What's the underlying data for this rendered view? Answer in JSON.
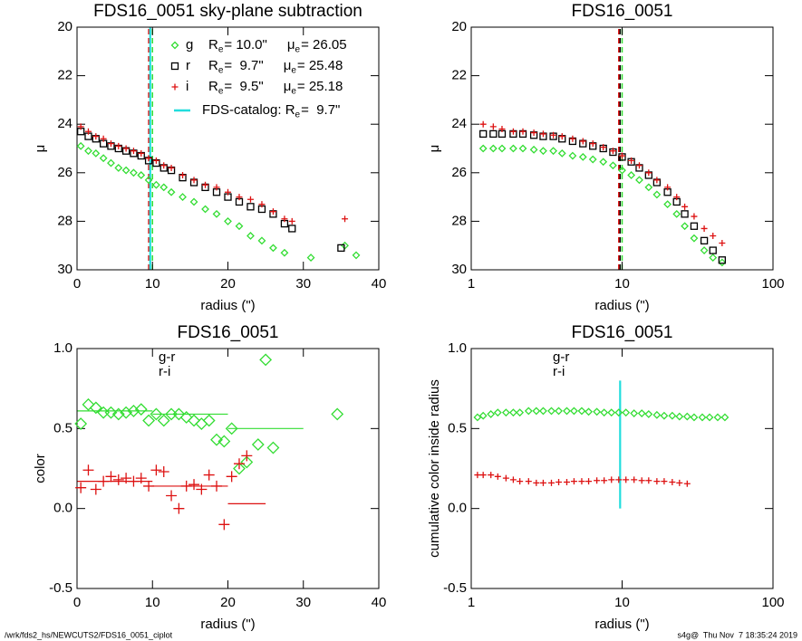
{
  "chart_data": [
    {
      "type": "scatter",
      "title": "FDS16_0051 sky-plane subtraction",
      "xlabel": "radius (\")",
      "ylabel": "μ",
      "xlim": [
        0,
        40
      ],
      "ylim": [
        30,
        20
      ],
      "xticks": [
        0,
        10,
        20,
        30,
        40
      ],
      "yticks": [
        20,
        22,
        24,
        26,
        28,
        30
      ],
      "legend_style": "symbols",
      "series": [
        {
          "name": "g",
          "color": "#33dd33",
          "marker": "diamond",
          "legend_parts": [
            [
              "R",
              "e"
            ],
            [
              "= 10.0\""
            ],
            [
              "μ",
              "e"
            ],
            [
              "= 26.05"
            ]
          ],
          "x": [
            0.5,
            1.5,
            2.5,
            3.5,
            4.5,
            5.5,
            6.5,
            7.5,
            8.5,
            9.5,
            10.5,
            11.5,
            12.5,
            14,
            15.5,
            17,
            18.5,
            20,
            21.5,
            23,
            24.5,
            26,
            27.5,
            31,
            35.5,
            37
          ],
          "values": [
            24.9,
            25.1,
            25.2,
            25.4,
            25.6,
            25.8,
            25.9,
            26.0,
            26.1,
            26.3,
            26.5,
            26.6,
            26.8,
            27.0,
            27.2,
            27.5,
            27.7,
            28.0,
            28.2,
            28.6,
            28.8,
            29.1,
            29.3,
            29.5,
            29.0,
            29.4
          ]
        },
        {
          "name": "r",
          "color": "#000000",
          "marker": "square",
          "legend_parts": [
            [
              "R",
              "e"
            ],
            [
              "=  9.7\""
            ],
            [
              "μ",
              "e"
            ],
            [
              "= 25.48"
            ]
          ],
          "x": [
            0.5,
            1.5,
            2.5,
            3.5,
            4.5,
            5.5,
            6.5,
            7.5,
            8.5,
            9.5,
            10.5,
            11.5,
            12.5,
            14,
            15.5,
            17,
            18.5,
            20,
            21.5,
            23,
            24.5,
            26,
            27.5,
            28.5,
            35
          ],
          "values": [
            24.3,
            24.5,
            24.6,
            24.8,
            24.9,
            25.0,
            25.1,
            25.2,
            25.3,
            25.5,
            25.6,
            25.8,
            25.9,
            26.2,
            26.4,
            26.6,
            26.8,
            27.0,
            27.2,
            27.4,
            27.5,
            27.7,
            28.1,
            28.3,
            29.1
          ]
        },
        {
          "name": "i",
          "color": "#dd1111",
          "marker": "plus",
          "legend_parts": [
            [
              "R",
              "e"
            ],
            [
              "=  9.5\""
            ],
            [
              "μ",
              "e"
            ],
            [
              "= 25.18"
            ]
          ],
          "x": [
            0.5,
            1.5,
            2.5,
            3.5,
            4.5,
            5.5,
            6.5,
            7.5,
            8.5,
            9.5,
            10.5,
            11.5,
            12.5,
            14,
            15.5,
            17,
            18.5,
            20,
            21.5,
            23,
            24.5,
            26,
            27.5,
            28.5,
            35.5
          ],
          "values": [
            24.1,
            24.3,
            24.5,
            24.6,
            24.8,
            24.9,
            25.0,
            25.1,
            25.2,
            25.4,
            25.5,
            25.7,
            25.8,
            26.1,
            26.3,
            26.5,
            26.6,
            26.8,
            27.0,
            27.1,
            27.3,
            27.6,
            27.9,
            28.0,
            27.9
          ]
        }
      ],
      "vlines": [
        {
          "x": 10.0,
          "color": "#33dd33",
          "dashed": true
        },
        {
          "x": 9.7,
          "color": "#000000",
          "dashed": true
        },
        {
          "x": 9.5,
          "color": "#dd1111",
          "dashed": true
        },
        {
          "x": 9.7,
          "color": "#22dddd",
          "dashed": false,
          "label_parts": [
            [
              "FDS-catalog: R",
              "e"
            ],
            [
              "=  9.7\""
            ]
          ]
        }
      ]
    },
    {
      "type": "scatter",
      "title": "FDS16_0051",
      "xlabel": "radius (\")",
      "ylabel": "μ",
      "xlog": true,
      "xlim": [
        1,
        100
      ],
      "ylim": [
        30,
        20
      ],
      "xticks": [
        1,
        10,
        100
      ],
      "yticks": [
        20,
        22,
        24,
        26,
        28,
        30
      ],
      "series": [
        {
          "color": "#33dd33",
          "marker": "diamond",
          "x": [
            1.2,
            1.4,
            1.6,
            1.9,
            2.2,
            2.6,
            3,
            3.5,
            4,
            4.7,
            5.5,
            6.4,
            7.5,
            8.7,
            10,
            11.5,
            13,
            15,
            17,
            20,
            23,
            26,
            30,
            35,
            40,
            46
          ],
          "values": [
            25.0,
            25.0,
            25.0,
            25.0,
            25.0,
            25.05,
            25.1,
            25.1,
            25.2,
            25.3,
            25.35,
            25.45,
            25.55,
            25.7,
            25.9,
            26.1,
            26.3,
            26.6,
            26.9,
            27.3,
            27.7,
            28.2,
            28.7,
            29.2,
            29.5,
            29.7
          ]
        },
        {
          "color": "#000000",
          "marker": "square",
          "x": [
            1.2,
            1.4,
            1.6,
            1.9,
            2.2,
            2.6,
            3,
            3.5,
            4,
            4.7,
            5.5,
            6.4,
            7.5,
            8.7,
            10,
            11.5,
            13,
            15,
            17,
            20,
            23,
            26,
            30,
            35,
            40,
            46
          ],
          "values": [
            24.4,
            24.4,
            24.4,
            24.4,
            24.4,
            24.45,
            24.5,
            24.5,
            24.6,
            24.7,
            24.8,
            24.9,
            25.0,
            25.15,
            25.35,
            25.55,
            25.8,
            26.1,
            26.4,
            26.8,
            27.2,
            27.7,
            28.2,
            28.8,
            29.2,
            29.6
          ]
        },
        {
          "color": "#dd1111",
          "marker": "plus",
          "x": [
            1.2,
            1.4,
            1.6,
            1.9,
            2.2,
            2.6,
            3,
            3.5,
            4,
            4.7,
            5.5,
            6.4,
            7.5,
            8.7,
            10,
            11.5,
            13,
            15,
            17,
            20,
            23,
            26,
            30,
            35,
            40,
            46
          ],
          "values": [
            24.0,
            24.1,
            24.2,
            24.3,
            24.3,
            24.35,
            24.4,
            24.45,
            24.5,
            24.6,
            24.7,
            24.8,
            24.95,
            25.1,
            25.3,
            25.5,
            25.7,
            26.0,
            26.3,
            26.6,
            27.0,
            27.4,
            27.8,
            28.3,
            28.6,
            28.9
          ]
        }
      ],
      "vlines": [
        {
          "x": 10.0,
          "color": "#33dd33",
          "dashed": true
        },
        {
          "x": 9.7,
          "color": "#000000",
          "dashed": true
        },
        {
          "x": 9.5,
          "color": "#dd1111",
          "dashed": true
        }
      ]
    },
    {
      "type": "scatter",
      "title": "FDS16_0051",
      "xlabel": "radius (\")",
      "ylabel": "color",
      "xlim": [
        0,
        40
      ],
      "ylim": [
        -0.5,
        1.0
      ],
      "xticks": [
        0,
        10,
        20,
        30,
        40
      ],
      "yticks": [
        {
          "value": -0.5,
          "label": "-0.5"
        },
        {
          "value": 0,
          "label": "0.0"
        },
        {
          "value": 0.5,
          "label": "0.5"
        },
        {
          "value": 1,
          "label": "1.0"
        }
      ],
      "legend_style": "names",
      "series": [
        {
          "name": "g-r",
          "color": "#33dd33",
          "marker": "diamond-big",
          "x": [
            0.5,
            1.5,
            2.5,
            3.5,
            4.5,
            5.5,
            6.5,
            7.5,
            8.5,
            9.5,
            10.5,
            11.5,
            12.5,
            13.5,
            14.5,
            15.5,
            16.5,
            17.5,
            18.5,
            19.5,
            20.5,
            21.5,
            22.5,
            24,
            25,
            26,
            34.5
          ],
          "values": [
            0.53,
            0.65,
            0.63,
            0.6,
            0.6,
            0.59,
            0.6,
            0.61,
            0.62,
            0.55,
            0.59,
            0.55,
            0.59,
            0.59,
            0.57,
            0.55,
            0.53,
            0.55,
            0.43,
            0.42,
            0.5,
            0.25,
            0.29,
            0.4,
            0.93,
            0.38,
            0.59
          ],
          "means": [
            {
              "x0": 0,
              "x1": 10,
              "value": 0.61
            },
            {
              "x0": 10,
              "x1": 20,
              "value": 0.59
            },
            {
              "x0": 20,
              "x1": 30,
              "value": 0.5
            }
          ]
        },
        {
          "name": "r-i",
          "color": "#dd1111",
          "marker": "plus-big",
          "x": [
            0.5,
            1.5,
            2.5,
            3.5,
            4.5,
            5.5,
            6.5,
            7.5,
            8.5,
            9.5,
            10.5,
            11.5,
            12.5,
            13.5,
            14.5,
            15.5,
            16.5,
            17.5,
            18.5,
            19.5,
            20.5,
            21.5,
            22.5
          ],
          "values": [
            0.13,
            0.24,
            0.12,
            0.17,
            0.2,
            0.18,
            0.19,
            0.17,
            0.19,
            0.14,
            0.24,
            0.23,
            0.08,
            0.0,
            0.14,
            0.15,
            0.12,
            0.21,
            0.14,
            -0.1,
            0.2,
            0.28,
            0.33
          ],
          "means": [
            {
              "x0": 0,
              "x1": 10,
              "value": 0.17
            },
            {
              "x0": 10,
              "x1": 20,
              "value": 0.14
            },
            {
              "x0": 20,
              "x1": 25,
              "value": 0.03
            }
          ]
        }
      ]
    },
    {
      "type": "scatter",
      "title": "FDS16_0051",
      "xlabel": "radius (\")",
      "ylabel": "cumulative color inside radius",
      "xlog": true,
      "xlim": [
        1,
        100
      ],
      "ylim": [
        -0.5,
        1.0
      ],
      "xticks": [
        1,
        10,
        100
      ],
      "yticks": [
        {
          "value": -0.5,
          "label": "-0.5"
        },
        {
          "value": 0,
          "label": "0.0"
        },
        {
          "value": 0.5,
          "label": "0.5"
        },
        {
          "value": 1,
          "label": "1.0"
        }
      ],
      "legend_style": "names",
      "series": [
        {
          "name": "g-r",
          "color": "#33dd33",
          "marker": "diamond",
          "x": [
            1.1,
            1.2,
            1.35,
            1.5,
            1.7,
            1.9,
            2.1,
            2.4,
            2.7,
            3,
            3.4,
            3.8,
            4.3,
            4.8,
            5.4,
            6,
            6.8,
            7.6,
            8.5,
            9.5,
            10.6,
            12,
            13.5,
            15,
            17,
            19,
            21.5,
            24,
            27,
            30,
            34,
            38,
            43,
            48
          ],
          "values": [
            0.57,
            0.58,
            0.59,
            0.6,
            0.6,
            0.6,
            0.6,
            0.61,
            0.61,
            0.61,
            0.61,
            0.61,
            0.61,
            0.61,
            0.61,
            0.605,
            0.605,
            0.6,
            0.6,
            0.6,
            0.6,
            0.595,
            0.595,
            0.59,
            0.585,
            0.58,
            0.58,
            0.575,
            0.575,
            0.57,
            0.57,
            0.57,
            0.57,
            0.57
          ]
        },
        {
          "name": "r-i",
          "color": "#dd1111",
          "marker": "plus",
          "x": [
            1.1,
            1.2,
            1.35,
            1.5,
            1.7,
            1.9,
            2.1,
            2.4,
            2.7,
            3,
            3.4,
            3.8,
            4.3,
            4.8,
            5.4,
            6,
            6.8,
            7.6,
            8.5,
            9.5,
            10.6,
            12,
            13.5,
            15,
            17,
            19,
            21.5,
            24,
            27
          ],
          "values": [
            0.21,
            0.21,
            0.21,
            0.2,
            0.19,
            0.18,
            0.17,
            0.17,
            0.16,
            0.16,
            0.16,
            0.165,
            0.165,
            0.17,
            0.17,
            0.17,
            0.175,
            0.175,
            0.18,
            0.18,
            0.18,
            0.18,
            0.175,
            0.175,
            0.17,
            0.17,
            0.165,
            0.16,
            0.155
          ]
        }
      ],
      "vlines": [
        {
          "x": 9.7,
          "y0": 0,
          "y1": 0.8,
          "color": "#22dddd",
          "dashed": false
        }
      ]
    }
  ],
  "footer": {
    "left": "/wrk/fds2_hs/NEWCUTS2/FDS16_0051_ciplot",
    "right": "s4g@  Thu Nov  7 18:35:24 2019"
  }
}
